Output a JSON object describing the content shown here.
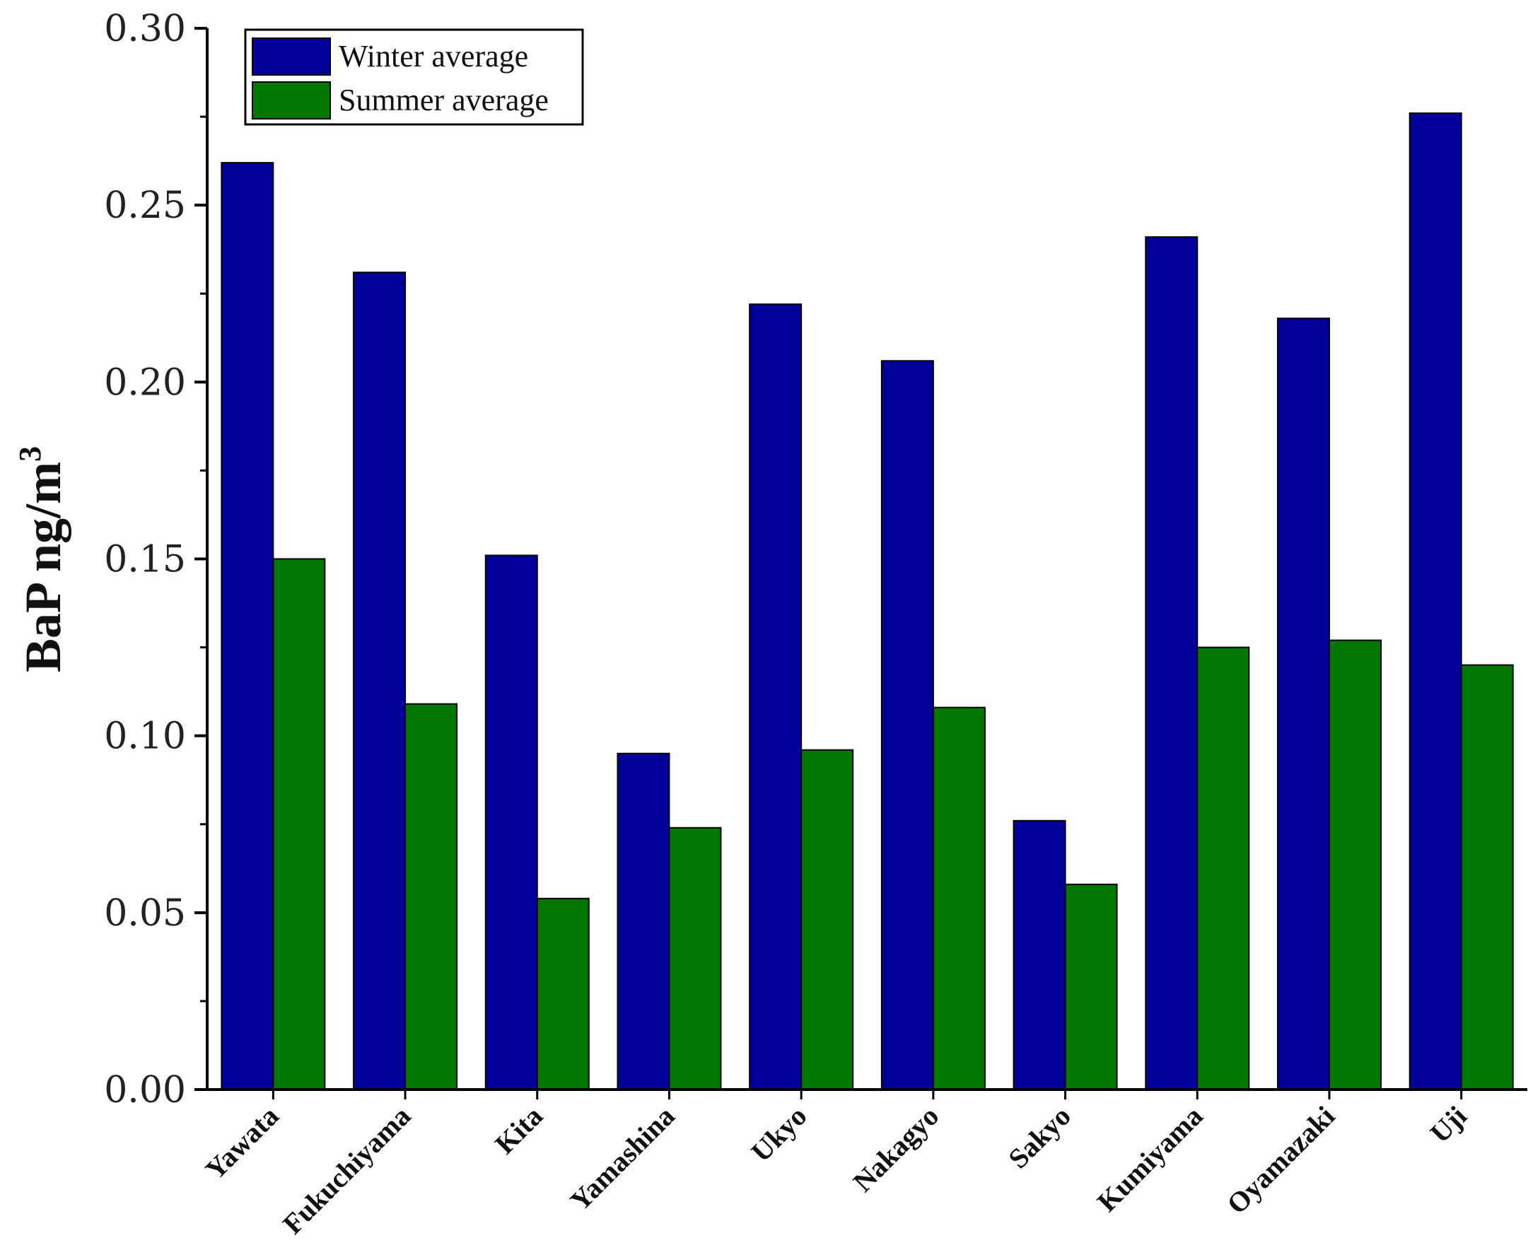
{
  "chart_data": {
    "type": "bar",
    "title": "",
    "xlabel": "",
    "ylabel_main": "BaP ng/m",
    "ylabel_sup": "3",
    "ylim": [
      0,
      0.3
    ],
    "yticks": [
      0.0,
      0.05,
      0.1,
      0.15,
      0.2,
      0.25,
      0.3
    ],
    "ytick_labels": [
      "0.00",
      "0.05",
      "0.10",
      "0.15",
      "0.20",
      "0.25",
      "0.30"
    ],
    "categories": [
      "Yawata",
      "Fukuchiyama",
      "Kita",
      "Yamashina",
      "Ukyo",
      "Nakagyo",
      "Sakyo",
      "Kumiyama",
      "Oyamazaki",
      "Uji"
    ],
    "series": [
      {
        "name": "Winter average",
        "color": "#000099",
        "values": [
          0.262,
          0.231,
          0.151,
          0.095,
          0.222,
          0.206,
          0.076,
          0.241,
          0.218,
          0.276
        ]
      },
      {
        "name": "Summer average",
        "color": "#007800",
        "values": [
          0.15,
          0.109,
          0.054,
          0.074,
          0.096,
          0.108,
          0.058,
          0.125,
          0.127,
          0.12
        ]
      }
    ],
    "legend_position": "top-left",
    "grid": false
  }
}
